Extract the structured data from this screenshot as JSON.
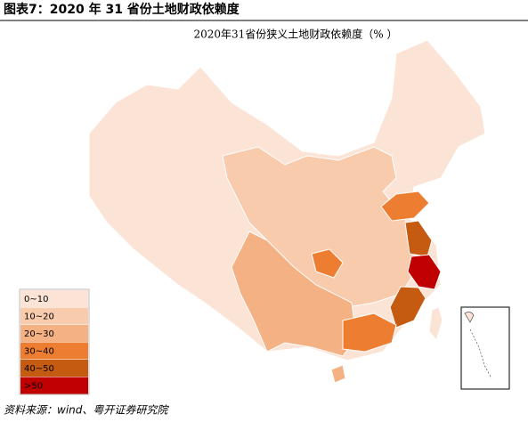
{
  "header": {
    "title": "图表7：2020 年 31 省份土地财政依赖度"
  },
  "map": {
    "title": "2020年31省份狭义土地财政依赖度（% ）",
    "legend": [
      {
        "label": "0~10",
        "color": "#fbe3d6"
      },
      {
        "label": "10~20",
        "color": "#f8cbad"
      },
      {
        "label": "20~30",
        "color": "#f4b183"
      },
      {
        "label": "30~40",
        "color": "#ed7d31"
      },
      {
        "label": "40~50",
        "color": "#c55a11"
      },
      {
        "label": ">50",
        "color": "#c00000"
      }
    ]
  },
  "footer": {
    "source": "资料来源：wind、粤开证券研究院"
  }
}
